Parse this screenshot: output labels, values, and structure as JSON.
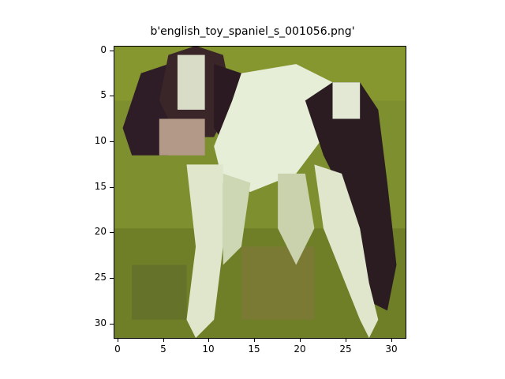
{
  "figure": {
    "title": "b'english_toy_spaniel_s_001056.png'"
  },
  "image": {
    "description_label": "dog-photo-pixels",
    "grid_size": 32
  },
  "axes": {
    "x_ticks": [
      "0",
      "5",
      "10",
      "15",
      "20",
      "25",
      "30"
    ],
    "y_ticks": [
      "0",
      "5",
      "10",
      "15",
      "20",
      "25",
      "30"
    ]
  },
  "colors": {
    "grass": "#7f8f2f",
    "grass_dark": "#6d7b26",
    "white": "#e9edd9",
    "dark": "#2a1a22",
    "brown": "#4a2f2f"
  }
}
